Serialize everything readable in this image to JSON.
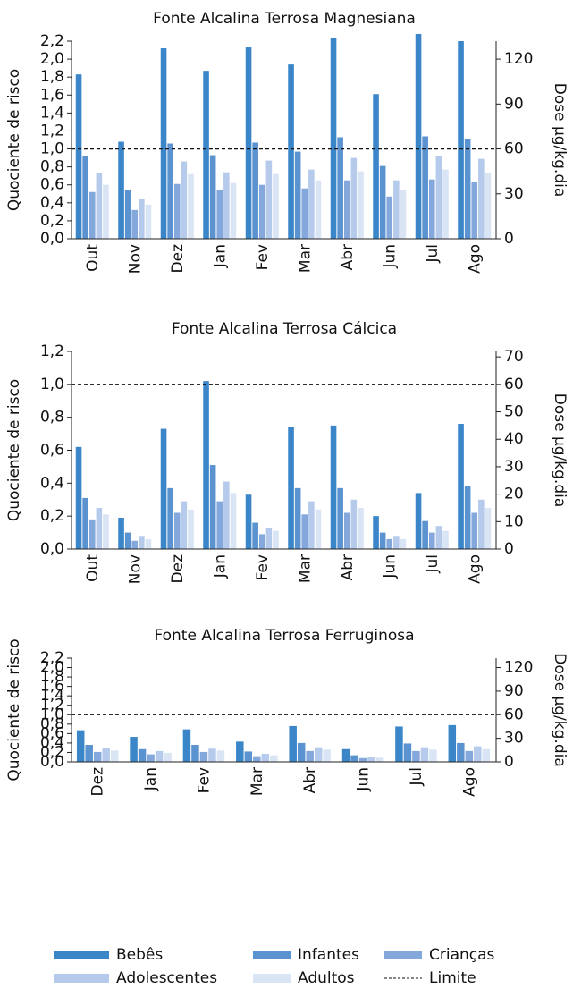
{
  "chart_data": [
    {
      "type": "bar",
      "title": "Fonte Alcalina Terrosa Magnesiana",
      "ylabel": "Quociente de risco",
      "y2label": "Dose  µg/kg.dia",
      "categories": [
        "Out",
        "Nov",
        "Dez",
        "Jan",
        "Fev",
        "Mar",
        "Abr",
        "Jun",
        "Jul",
        "Ago"
      ],
      "series": [
        {
          "name": "Bebês",
          "color": "#3a86c8",
          "values": [
            1.83,
            1.08,
            2.12,
            1.87,
            2.13,
            1.94,
            2.24,
            1.61,
            2.28,
            2.2
          ]
        },
        {
          "name": "Infantes",
          "color": "#5b93d0",
          "values": [
            0.92,
            0.54,
            1.06,
            0.93,
            1.07,
            0.97,
            1.13,
            0.81,
            1.14,
            1.11
          ]
        },
        {
          "name": "Crianças",
          "color": "#84a8dc",
          "values": [
            0.52,
            0.32,
            0.61,
            0.54,
            0.6,
            0.56,
            0.65,
            0.47,
            0.66,
            0.63
          ]
        },
        {
          "name": "Adolescentes",
          "color": "#b6cbec",
          "values": [
            0.73,
            0.44,
            0.86,
            0.74,
            0.87,
            0.77,
            0.9,
            0.65,
            0.92,
            0.89
          ]
        },
        {
          "name": "Adultos",
          "color": "#d9e4f5",
          "values": [
            0.6,
            0.38,
            0.72,
            0.62,
            0.72,
            0.65,
            0.75,
            0.54,
            0.77,
            0.73
          ]
        }
      ],
      "hline": {
        "value": 1.0,
        "label": "Limite"
      },
      "ylim": [
        0,
        2.2
      ],
      "yticks": [
        {
          "value": 0,
          "label": "0,0"
        },
        {
          "value": 0.2,
          "label": "0,2"
        },
        {
          "value": 0.4,
          "label": "0,4"
        },
        {
          "value": 0.6,
          "label": "0,6"
        },
        {
          "value": 0.8,
          "label": "0,8"
        },
        {
          "value": 1.0,
          "label": "1,0"
        },
        {
          "value": 1.2,
          "label": "1,2"
        },
        {
          "value": 1.4,
          "label": "1,4"
        },
        {
          "value": 1.6,
          "label": "1,6"
        },
        {
          "value": 1.8,
          "label": "1,8"
        },
        {
          "value": 2.0,
          "label": "2,0"
        },
        {
          "value": 2.2,
          "label": "2,2"
        }
      ],
      "y2lim": [
        0,
        132
      ],
      "y2ticks": [
        0,
        30,
        60,
        90,
        120
      ]
    },
    {
      "type": "bar",
      "title": "Fonte Alcalina Terrosa Cálcica",
      "ylabel": "Quociente de risco",
      "y2label": "Dose  µg/kg.dia",
      "categories": [
        "Out",
        "Nov",
        "Dez",
        "Jan",
        "Fev",
        "Mar",
        "Abr",
        "Jun",
        "Jul",
        "Ago"
      ],
      "series": [
        {
          "values": [
            0.62,
            0.19,
            0.73,
            1.02,
            0.33,
            0.74,
            0.75,
            0.2,
            0.34,
            0.76
          ]
        },
        {
          "values": [
            0.31,
            0.1,
            0.37,
            0.51,
            0.16,
            0.37,
            0.37,
            0.1,
            0.17,
            0.38
          ]
        },
        {
          "values": [
            0.18,
            0.05,
            0.22,
            0.29,
            0.09,
            0.21,
            0.22,
            0.06,
            0.1,
            0.22
          ]
        },
        {
          "values": [
            0.25,
            0.08,
            0.29,
            0.41,
            0.13,
            0.29,
            0.3,
            0.08,
            0.14,
            0.3
          ]
        },
        {
          "values": [
            0.21,
            0.06,
            0.24,
            0.34,
            0.11,
            0.24,
            0.25,
            0.06,
            0.11,
            0.25
          ]
        }
      ],
      "hline": {
        "value": 1.0
      },
      "ylim": [
        0,
        1.2
      ],
      "yticks": [
        {
          "value": 0,
          "label": "0,0"
        },
        {
          "value": 0.2,
          "label": "0,2"
        },
        {
          "value": 0.4,
          "label": "0,4"
        },
        {
          "value": 0.6,
          "label": "0,6"
        },
        {
          "value": 0.8,
          "label": "0,8"
        },
        {
          "value": 1.0,
          "label": "1,0"
        },
        {
          "value": 1.2,
          "label": "1,2"
        }
      ],
      "y2lim": [
        0,
        72
      ],
      "y2ticks": [
        0,
        10,
        20,
        30,
        40,
        50,
        60,
        70
      ]
    },
    {
      "type": "bar",
      "title": "Fonte Alcalina Terrosa Ferruginosa",
      "ylabel": "Quociente de risco",
      "y2label": "Dose  µg/kg.dia",
      "categories": [
        "Dez",
        "Jan",
        "Fev",
        "Mar",
        "Abr",
        "Jun",
        "Jul",
        "Ago"
      ],
      "series": [
        {
          "values": [
            0.67,
            0.53,
            0.69,
            0.43,
            0.76,
            0.27,
            0.75,
            0.78
          ]
        },
        {
          "values": [
            0.36,
            0.27,
            0.36,
            0.22,
            0.4,
            0.14,
            0.39,
            0.4
          ]
        },
        {
          "values": [
            0.21,
            0.16,
            0.21,
            0.12,
            0.23,
            0.08,
            0.23,
            0.23
          ]
        },
        {
          "values": [
            0.29,
            0.23,
            0.28,
            0.17,
            0.31,
            0.11,
            0.31,
            0.33
          ]
        },
        {
          "values": [
            0.24,
            0.19,
            0.24,
            0.14,
            0.26,
            0.09,
            0.26,
            0.27
          ]
        }
      ],
      "hline": {
        "value": 1.0
      },
      "ylim": [
        0,
        2.2
      ],
      "yticks": [
        {
          "value": 0,
          "label": "0,0"
        },
        {
          "value": 0.2,
          "label": "0,2"
        },
        {
          "value": 0.4,
          "label": "0,4"
        },
        {
          "value": 0.6,
          "label": "0,6"
        },
        {
          "value": 0.8,
          "label": "0,8"
        },
        {
          "value": 1.0,
          "label": "1,0"
        },
        {
          "value": 1.2,
          "label": "1,2"
        },
        {
          "value": 1.4,
          "label": "1,4"
        },
        {
          "value": 1.6,
          "label": "1,6"
        },
        {
          "value": 1.8,
          "label": "1,8"
        },
        {
          "value": 2.0,
          "label": "2,0"
        },
        {
          "value": 2.2,
          "label": "2,2"
        }
      ],
      "y2lim": [
        0,
        132
      ],
      "y2ticks": [
        0,
        30,
        60,
        90,
        120
      ]
    }
  ]
}
